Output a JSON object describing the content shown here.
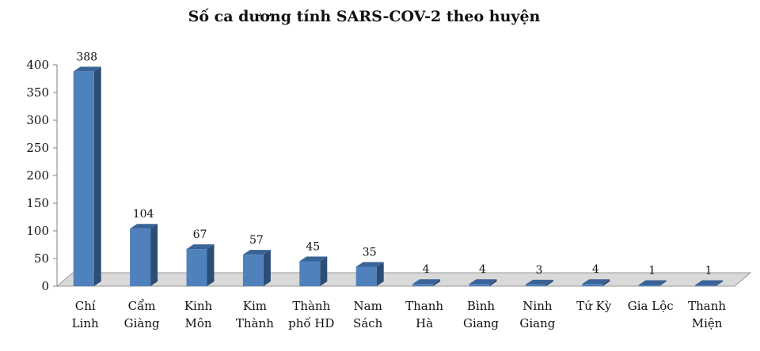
{
  "chart_data": {
    "type": "bar",
    "title": "Số ca dương tính SARS-COV-2 theo huyện",
    "xlabel": "",
    "ylabel": "",
    "ylim": [
      0,
      400
    ],
    "yticks": [
      0,
      50,
      100,
      150,
      200,
      250,
      300,
      350,
      400
    ],
    "grid": false,
    "legend": "none",
    "categories": [
      [
        "Chí",
        "Linh"
      ],
      [
        "Cẩm",
        "Giàng"
      ],
      [
        "Kinh",
        "Môn"
      ],
      [
        "Kim",
        "Thành"
      ],
      [
        "Thành",
        "phố HD"
      ],
      [
        "Nam",
        "Sách"
      ],
      [
        "Thanh",
        "Hà"
      ],
      [
        "Bình",
        "Giang"
      ],
      [
        "Ninh",
        "Giang"
      ],
      [
        "Tứ Kỳ"
      ],
      [
        "Gia Lộc"
      ],
      [
        "Thanh",
        "Miện"
      ]
    ],
    "values": [
      388,
      104,
      67,
      57,
      45,
      35,
      4,
      4,
      3,
      4,
      1,
      1
    ],
    "colors": {
      "front": "#4f81bd",
      "side": "#2c4d75",
      "top": "#3a6397",
      "floor": "#d9d9d9"
    }
  }
}
